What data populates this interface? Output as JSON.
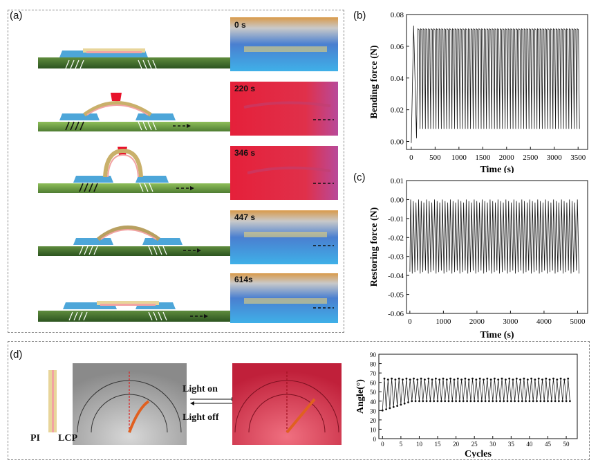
{
  "panels": {
    "a": "(a)",
    "b": "(b)",
    "c": "(c)",
    "d": "(d)"
  },
  "timestamps": [
    "0 s",
    "220 s",
    "346 s",
    "447 s",
    "614s"
  ],
  "d_labels": {
    "pi": "PI",
    "lcp": "LCP",
    "light_on": "Light on",
    "light_off": "Light off"
  },
  "colors": {
    "green_substrate": "#3d6b2a",
    "blue_pad": "#4da6d9",
    "red_lamp": "#e8132b",
    "ruler_orange": "#d99a4a",
    "photo_blue": "#3fb0e8",
    "photo_red": "#e5203a"
  },
  "chart_data": [
    {
      "id": "b",
      "type": "line",
      "xlabel": "Time (s)",
      "ylabel": "Bending force (N)",
      "xlim": [
        -100,
        3700
      ],
      "ylim": [
        -0.005,
        0.08
      ],
      "xticks": [
        0,
        500,
        1000,
        1500,
        2000,
        2500,
        3000,
        3500
      ],
      "yticks": [
        0.0,
        0.02,
        0.04,
        0.06,
        0.08
      ],
      "ytick_labels": [
        "0.00",
        "0.02",
        "0.04",
        "0.06",
        "0.08"
      ],
      "series": [
        {
          "start": 0,
          "end": 3500,
          "cycles": 61,
          "min": 0.008,
          "max": 0.071,
          "initial_min": -0.001,
          "initial_peak": 0.073
        }
      ]
    },
    {
      "id": "c",
      "type": "line",
      "xlabel": "Time (s)",
      "ylabel": "Restoring force (N)",
      "xlim": [
        -100,
        5300
      ],
      "ylim": [
        -0.06,
        0.01
      ],
      "xticks": [
        0,
        1000,
        2000,
        3000,
        4000,
        5000
      ],
      "yticks": [
        -0.06,
        -0.05,
        -0.04,
        -0.03,
        -0.02,
        -0.01,
        0.0,
        0.01
      ],
      "ytick_labels": [
        "-0.06",
        "-0.05",
        "-0.04",
        "-0.03",
        "-0.02",
        "-0.01",
        "0.00",
        "0.01"
      ],
      "series": [
        {
          "start": 0,
          "end": 5050,
          "cycles": 64,
          "min": -0.039,
          "max": 0.0
        }
      ]
    },
    {
      "id": "d",
      "type": "line",
      "xlabel": "Cycles",
      "ylabel": "Angle(°)",
      "xlim": [
        -1,
        53
      ],
      "ylim": [
        0,
        90
      ],
      "xticks": [
        0,
        5,
        10,
        15,
        20,
        25,
        30,
        35,
        40,
        45,
        50
      ],
      "yticks": [
        0,
        10,
        20,
        30,
        40,
        50,
        60,
        70,
        80,
        90
      ],
      "series": [
        {
          "cycles": 51,
          "min_start": 30,
          "min_end": 40,
          "max": 64
        }
      ]
    }
  ]
}
